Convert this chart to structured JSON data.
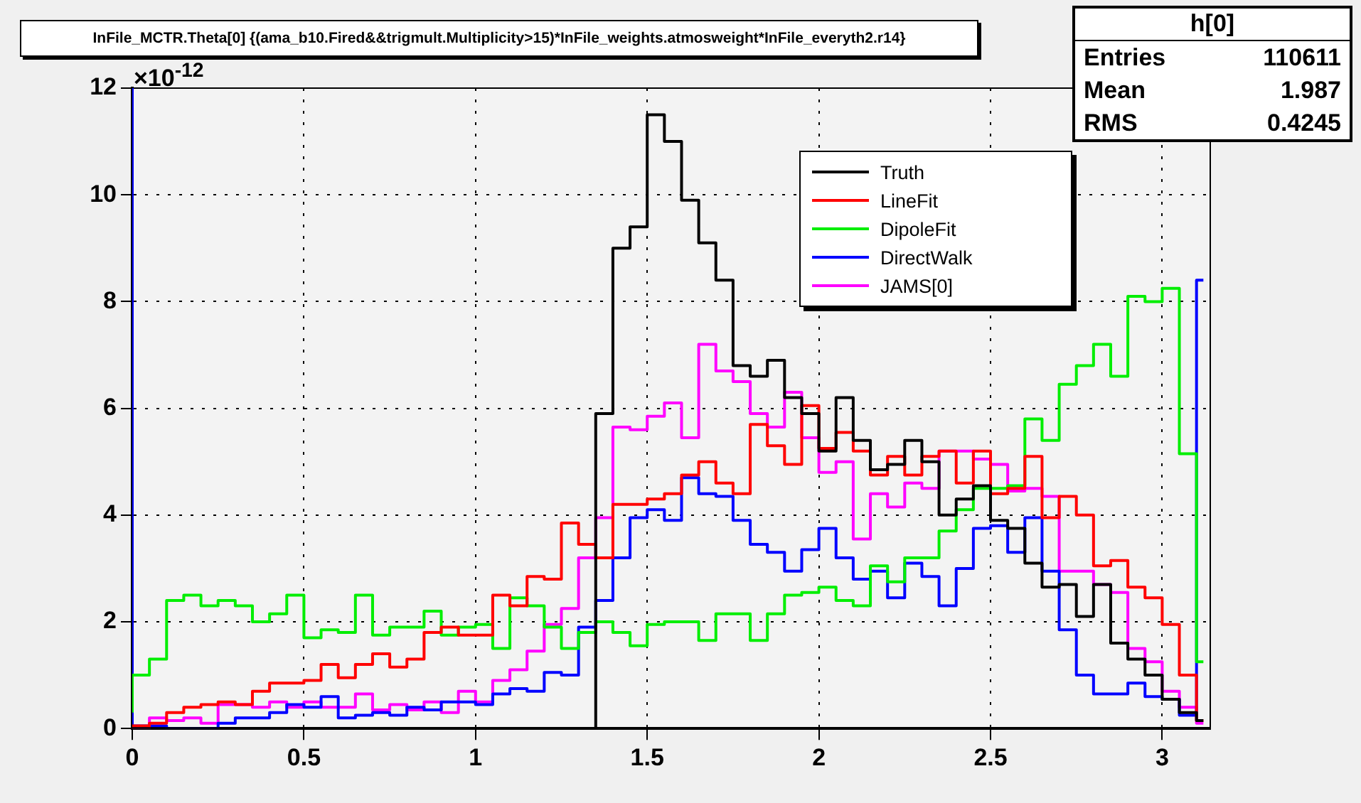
{
  "chart_data": {
    "type": "step",
    "title": "InFile_MCTR.Theta[0] {(ama_b10.Fired&&trigmult.Multiplicity>15)*InFile_weights.atmosweight*InFile_everyth2.r14}",
    "annotations": [
      "×10$^{-12}$",
      "h[0]",
      "Entries 110611",
      "Mean 1.987",
      "RMS 0.4245"
    ],
    "x": [
      0,
      0.05,
      0.1,
      0.15,
      0.2,
      0.25,
      0.3,
      0.35,
      0.4,
      0.45,
      0.5,
      0.55,
      0.6,
      0.65,
      0.7,
      0.75,
      0.8,
      0.85,
      0.9,
      0.95,
      1.0,
      1.05,
      1.1,
      1.15,
      1.2,
      1.25,
      1.3,
      1.35,
      1.4,
      1.45,
      1.5,
      1.55,
      1.6,
      1.65,
      1.7,
      1.75,
      1.8,
      1.85,
      1.9,
      1.95,
      2.0,
      2.05,
      2.1,
      2.15,
      2.2,
      2.25,
      2.3,
      2.35,
      2.4,
      2.45,
      2.5,
      2.55,
      2.6,
      2.65,
      2.7,
      2.75,
      2.8,
      2.85,
      2.9,
      2.95,
      3.0,
      3.05,
      3.1,
      3.12
    ],
    "series": [
      {
        "name": "Truth",
        "color": "#000000",
        "values": [
          0,
          0,
          0,
          0,
          0,
          0,
          0,
          0,
          0,
          0,
          0,
          0,
          0,
          0,
          0,
          0,
          0,
          0,
          0,
          0,
          0,
          0,
          0,
          0,
          0,
          0,
          0,
          0,
          5.9,
          9.0,
          9.4,
          11.5,
          11.0,
          9.9,
          9.1,
          8.4,
          6.8,
          6.6,
          6.9,
          6.2,
          5.9,
          5.2,
          6.2,
          5.4,
          4.85,
          4.95,
          5.4,
          5.0,
          4.0,
          4.3,
          4.55,
          3.9,
          3.75,
          3.1,
          2.65,
          2.7,
          2.1,
          2.7,
          1.6,
          1.3,
          1.0,
          0.55,
          0.3,
          0.15
        ]
      },
      {
        "name": "LineFit",
        "color": "#ff0000",
        "values": [
          0,
          0.05,
          0.1,
          0.3,
          0.4,
          0.45,
          0.5,
          0.45,
          0.7,
          0.85,
          0.85,
          0.9,
          1.2,
          0.95,
          1.2,
          1.4,
          1.15,
          1.3,
          1.8,
          1.9,
          1.75,
          1.75,
          2.5,
          2.3,
          2.85,
          2.8,
          3.85,
          3.45,
          3.2,
          4.2,
          4.2,
          4.3,
          4.4,
          4.75,
          5.0,
          4.6,
          4.4,
          5.7,
          5.3,
          4.95,
          6.05,
          5.25,
          5.55,
          5.2,
          4.75,
          5.1,
          4.75,
          5.1,
          5.2,
          4.6,
          5.2,
          4.4,
          4.5,
          5.1,
          3.95,
          4.35,
          4.0,
          3.05,
          3.15,
          2.65,
          2.45,
          1.95,
          1.0,
          0.15
        ]
      },
      {
        "name": "DipoleFit",
        "color": "#00ee00",
        "values": [
          0.3,
          1.0,
          1.3,
          2.4,
          2.5,
          2.3,
          2.4,
          2.3,
          2.0,
          2.15,
          2.5,
          1.7,
          1.85,
          1.8,
          2.5,
          1.75,
          1.9,
          1.9,
          2.2,
          1.75,
          1.9,
          1.95,
          1.5,
          2.45,
          2.3,
          1.9,
          1.5,
          1.8,
          2.0,
          1.8,
          1.55,
          1.95,
          2.0,
          2.0,
          1.65,
          2.15,
          2.15,
          1.65,
          2.15,
          2.5,
          2.55,
          2.65,
          2.4,
          2.3,
          3.05,
          2.75,
          3.2,
          3.2,
          3.7,
          4.1,
          4.5,
          4.5,
          4.55,
          5.8,
          5.4,
          6.45,
          6.8,
          7.2,
          6.6,
          8.1,
          8.0,
          8.25,
          5.15,
          1.25
        ]
      },
      {
        "name": "DirectWalk",
        "color": "#0000ff",
        "values": [
          12,
          0.05,
          0.05,
          0,
          0,
          0,
          0.1,
          0.2,
          0.2,
          0.3,
          0.45,
          0.4,
          0.6,
          0.2,
          0.25,
          0.3,
          0.25,
          0.4,
          0.35,
          0.5,
          0.5,
          0.45,
          0.65,
          0.75,
          0.7,
          1.05,
          1.0,
          1.9,
          2.4,
          3.2,
          3.95,
          4.1,
          3.9,
          4.7,
          4.4,
          4.35,
          3.9,
          3.45,
          3.3,
          2.95,
          3.35,
          3.75,
          3.2,
          2.8,
          2.95,
          2.45,
          3.1,
          2.85,
          2.3,
          3.0,
          3.75,
          3.8,
          3.3,
          3.95,
          2.95,
          1.85,
          1.0,
          0.65,
          0.65,
          0.85,
          0.6,
          0.55,
          0.25,
          8.4
        ]
      },
      {
        "name": "JAMS[0]",
        "color": "#ff00ff",
        "values": [
          0,
          0,
          0.2,
          0.15,
          0.2,
          0.1,
          0.45,
          0.45,
          0.4,
          0.5,
          0.4,
          0.5,
          0.4,
          0.4,
          0.65,
          0.35,
          0.45,
          0.35,
          0.5,
          0.3,
          0.7,
          0.5,
          0.9,
          1.1,
          1.45,
          1.95,
          2.25,
          3.2,
          3.95,
          5.65,
          5.6,
          5.85,
          6.1,
          5.45,
          7.2,
          6.7,
          6.5,
          5.9,
          5.65,
          6.3,
          5.45,
          4.8,
          5.0,
          3.55,
          4.4,
          4.15,
          4.6,
          4.5,
          5.2,
          5.2,
          5.05,
          4.95,
          4.45,
          4.5,
          4.35,
          2.95,
          2.95,
          2.7,
          2.55,
          1.5,
          1.25,
          0.7,
          0.4,
          0.1
        ]
      }
    ],
    "xlim": [
      0,
      3.14
    ],
    "xticks": [
      0,
      0.5,
      1,
      1.5,
      2,
      2.5,
      3
    ],
    "ylim": [
      0,
      12
    ],
    "yticks": [
      0,
      2,
      4,
      6,
      8,
      10,
      12
    ],
    "grid": true,
    "legend": "top right",
    "marker": "none"
  }
}
